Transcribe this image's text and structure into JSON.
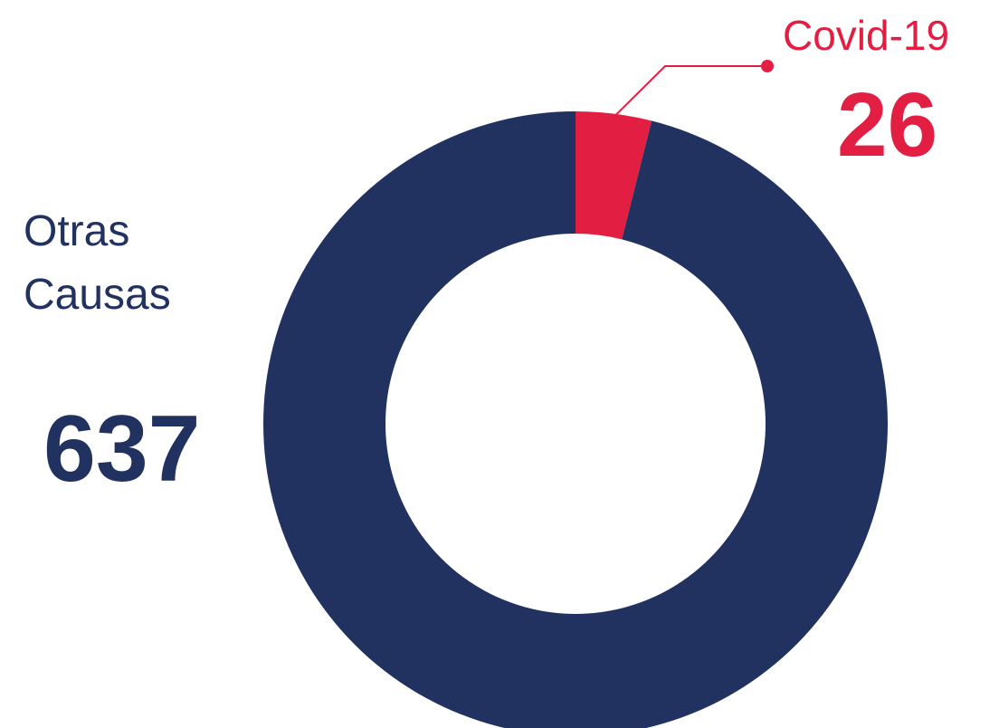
{
  "chart_data": {
    "type": "pie",
    "variant": "donut",
    "categories": [
      "Otras Causas",
      "Covid-19"
    ],
    "values": [
      637,
      26
    ],
    "colors": [
      "#213260",
      "#e31e43"
    ],
    "labels": {
      "otras_line1": "Otras",
      "otras_line2": "Causas",
      "otras_value": "637",
      "covid_name": "Covid-19",
      "covid_value": "26"
    },
    "legend": "none"
  }
}
